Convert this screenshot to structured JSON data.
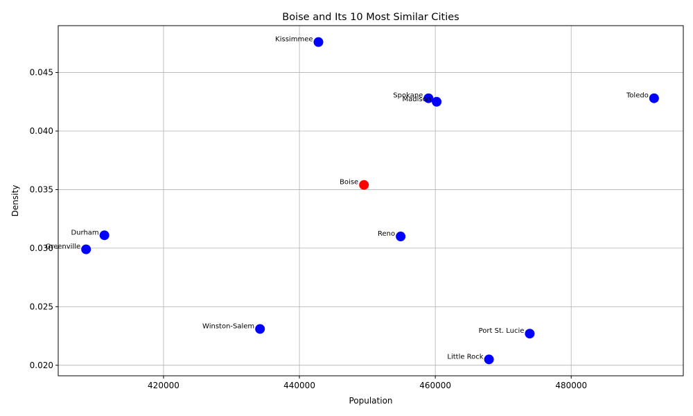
{
  "chart_data": {
    "type": "scatter",
    "title": "Boise and Its 10 Most Similar Cities",
    "xlabel": "Population",
    "ylabel": "Density",
    "xlim": [
      404500,
      496500
    ],
    "ylim": [
      0.0191,
      0.049
    ],
    "xticks": [
      420000,
      440000,
      460000,
      480000
    ],
    "yticks": [
      0.02,
      0.025,
      0.03,
      0.035,
      0.04,
      0.045
    ],
    "xtick_labels": [
      "420000",
      "440000",
      "460000",
      "480000"
    ],
    "ytick_labels": [
      "0.020",
      "0.025",
      "0.030",
      "0.035",
      "0.040",
      "0.045"
    ],
    "grid": true,
    "highlight_color": "#ff0000",
    "point_color": "#0000ff",
    "points": [
      {
        "label": "Boise",
        "x": 449500,
        "y": 0.0354,
        "highlight": true
      },
      {
        "label": "Kissimmee",
        "x": 442800,
        "y": 0.0476,
        "highlight": false
      },
      {
        "label": "Spokane",
        "x": 459000,
        "y": 0.0428,
        "highlight": false
      },
      {
        "label": "Madison",
        "x": 460200,
        "y": 0.0425,
        "highlight": false
      },
      {
        "label": "Toledo",
        "x": 492200,
        "y": 0.0428,
        "highlight": false
      },
      {
        "label": "Reno",
        "x": 454900,
        "y": 0.031,
        "highlight": false
      },
      {
        "label": "Durham",
        "x": 411300,
        "y": 0.0311,
        "highlight": false
      },
      {
        "label": "Greenville",
        "x": 408600,
        "y": 0.0299,
        "highlight": false
      },
      {
        "label": "Winston-Salem",
        "x": 434200,
        "y": 0.0231,
        "highlight": false
      },
      {
        "label": "Port St. Lucie",
        "x": 473900,
        "y": 0.0227,
        "highlight": false
      },
      {
        "label": "Little Rock",
        "x": 467900,
        "y": 0.0205,
        "highlight": false
      }
    ]
  }
}
